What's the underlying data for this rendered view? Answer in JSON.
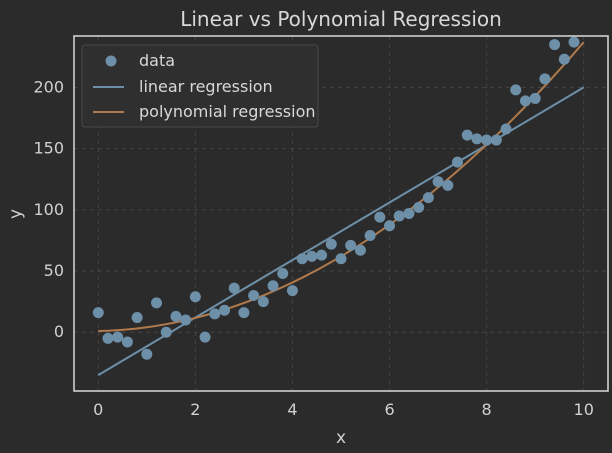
{
  "chart_data": {
    "type": "scatter",
    "title": "Linear vs Polynomial Regression",
    "xlabel": "x",
    "ylabel": "y",
    "xlim": [
      -0.5,
      10.5
    ],
    "ylim": [
      -48,
      242
    ],
    "xticks": [
      0,
      2,
      4,
      6,
      8,
      10
    ],
    "yticks": [
      0,
      50,
      100,
      150,
      200
    ],
    "grid": true,
    "legend_position": "top-left",
    "colors": {
      "background": "#2b2b2b",
      "frame": "#cfcfcf",
      "grid": "#444444",
      "data": "#6d8fa8",
      "linear": "#6d8fa8",
      "polynomial": "#b07a4c"
    },
    "legend": {
      "data": "data",
      "linear": "linear regression",
      "polynomial": "polynomial regression"
    },
    "series": [
      {
        "name": "data",
        "kind": "scatter",
        "points": [
          [
            0.0,
            16
          ],
          [
            0.2,
            -5
          ],
          [
            0.4,
            -4
          ],
          [
            0.6,
            -8
          ],
          [
            0.8,
            12
          ],
          [
            1.0,
            -18
          ],
          [
            1.2,
            24
          ],
          [
            1.4,
            0
          ],
          [
            1.6,
            13
          ],
          [
            1.8,
            10
          ],
          [
            2.0,
            29
          ],
          [
            2.2,
            -4
          ],
          [
            2.4,
            15
          ],
          [
            2.6,
            18
          ],
          [
            2.8,
            36
          ],
          [
            3.0,
            16
          ],
          [
            3.2,
            30
          ],
          [
            3.4,
            25
          ],
          [
            3.6,
            38
          ],
          [
            3.8,
            48
          ],
          [
            4.0,
            34
          ],
          [
            4.2,
            60
          ],
          [
            4.4,
            62
          ],
          [
            4.6,
            63
          ],
          [
            4.8,
            72
          ],
          [
            5.0,
            60
          ],
          [
            5.2,
            71
          ],
          [
            5.4,
            67
          ],
          [
            5.6,
            79
          ],
          [
            5.8,
            94
          ],
          [
            6.0,
            87
          ],
          [
            6.2,
            95
          ],
          [
            6.4,
            97
          ],
          [
            6.6,
            102
          ],
          [
            6.8,
            110
          ],
          [
            7.0,
            123
          ],
          [
            7.2,
            120
          ],
          [
            7.4,
            139
          ],
          [
            7.6,
            161
          ],
          [
            7.8,
            158
          ],
          [
            8.0,
            157
          ],
          [
            8.2,
            157
          ],
          [
            8.4,
            166
          ],
          [
            8.6,
            198
          ],
          [
            8.8,
            189
          ],
          [
            9.0,
            191
          ],
          [
            9.2,
            207
          ],
          [
            9.4,
            235
          ],
          [
            9.6,
            223
          ],
          [
            9.8,
            237
          ]
        ]
      },
      {
        "name": "linear regression",
        "kind": "line",
        "points": [
          [
            0,
            -35
          ],
          [
            10,
            200
          ]
        ]
      },
      {
        "name": "polynomial regression",
        "kind": "curve",
        "coefficients": [
          1,
          0.8,
          2.28
        ]
      }
    ]
  }
}
